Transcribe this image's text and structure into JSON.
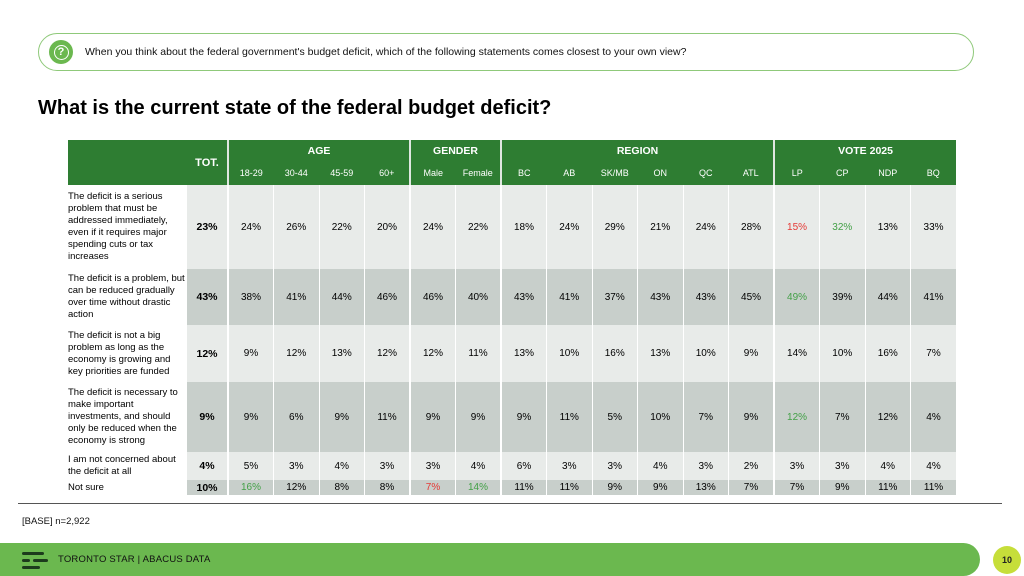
{
  "question": "When you think about the federal government's budget deficit, which of the following statements comes closest to your own view?",
  "question_icon": "?",
  "title": "What is the current state of the federal budget deficit?",
  "colors": {
    "brand_green": "#2e7d32",
    "accent_green": "#6bb84f",
    "negative": "#e53935",
    "positive": "#43a047",
    "page_badge": "#c6de3a"
  },
  "table": {
    "tot_label": "TOT.",
    "groups": [
      {
        "label": "AGE",
        "cols": [
          "18-29",
          "30-44",
          "45-59",
          "60+"
        ]
      },
      {
        "label": "GENDER",
        "cols": [
          "Male",
          "Female"
        ]
      },
      {
        "label": "REGION",
        "cols": [
          "BC",
          "AB",
          "SK/MB",
          "ON",
          "QC",
          "ATL"
        ]
      },
      {
        "label": "VOTE 2025",
        "cols": [
          "LP",
          "CP",
          "NDP",
          "BQ"
        ]
      }
    ],
    "rows": [
      {
        "label": "The deficit is a serious problem that must be addressed immediately, even if it requires major spending cuts or tax increases",
        "tot": "23%",
        "values": [
          "24%",
          "26%",
          "22%",
          "20%",
          "24%",
          "22%",
          "18%",
          "24%",
          "29%",
          "21%",
          "24%",
          "28%",
          "15%",
          "32%",
          "13%",
          "33%"
        ],
        "flags": [
          "",
          "",
          "",
          "",
          "",
          "",
          "",
          "",
          "",
          "",
          "",
          "",
          "red",
          "green",
          "",
          ""
        ]
      },
      {
        "label": "The deficit is a problem, but can be reduced gradually over time without drastic action",
        "tot": "43%",
        "values": [
          "38%",
          "41%",
          "44%",
          "46%",
          "46%",
          "40%",
          "43%",
          "41%",
          "37%",
          "43%",
          "43%",
          "45%",
          "49%",
          "39%",
          "44%",
          "41%"
        ],
        "flags": [
          "",
          "",
          "",
          "",
          "",
          "",
          "",
          "",
          "",
          "",
          "",
          "",
          "green",
          "",
          "",
          ""
        ]
      },
      {
        "label": "The deficit is not a big problem as long as the economy is growing and key priorities are funded",
        "tot": "12%",
        "values": [
          "9%",
          "12%",
          "13%",
          "12%",
          "12%",
          "11%",
          "13%",
          "10%",
          "16%",
          "13%",
          "10%",
          "9%",
          "14%",
          "10%",
          "16%",
          "7%"
        ],
        "flags": [
          "",
          "",
          "",
          "",
          "",
          "",
          "",
          "",
          "",
          "",
          "",
          "",
          "",
          "",
          "",
          ""
        ]
      },
      {
        "label": "The deficit is necessary to make important investments, and should only be reduced when the economy is strong",
        "tot": "9%",
        "values": [
          "9%",
          "6%",
          "9%",
          "11%",
          "9%",
          "9%",
          "9%",
          "11%",
          "5%",
          "10%",
          "7%",
          "9%",
          "12%",
          "7%",
          "12%",
          "4%"
        ],
        "flags": [
          "",
          "",
          "",
          "",
          "",
          "",
          "",
          "",
          "",
          "",
          "",
          "",
          "green",
          "",
          "",
          ""
        ]
      },
      {
        "label": "I am not concerned about the deficit at all",
        "tot": "4%",
        "values": [
          "5%",
          "3%",
          "4%",
          "3%",
          "3%",
          "4%",
          "6%",
          "3%",
          "3%",
          "4%",
          "3%",
          "2%",
          "3%",
          "3%",
          "4%",
          "4%"
        ],
        "flags": [
          "",
          "",
          "",
          "",
          "",
          "",
          "",
          "",
          "",
          "",
          "",
          "",
          "",
          "",
          "",
          ""
        ]
      },
      {
        "label": "Not sure",
        "tot": "10%",
        "values": [
          "16%",
          "12%",
          "8%",
          "8%",
          "7%",
          "14%",
          "11%",
          "11%",
          "9%",
          "9%",
          "13%",
          "7%",
          "7%",
          "9%",
          "11%",
          "11%"
        ],
        "flags": [
          "green",
          "",
          "",
          "",
          "red",
          "green",
          "",
          "",
          "",
          "",
          "",
          "",
          "",
          "",
          "",
          ""
        ]
      }
    ]
  },
  "base": "[BASE] n=2,922",
  "footer": {
    "text": "TORONTO STAR  |  ABACUS DATA",
    "page": "10"
  }
}
